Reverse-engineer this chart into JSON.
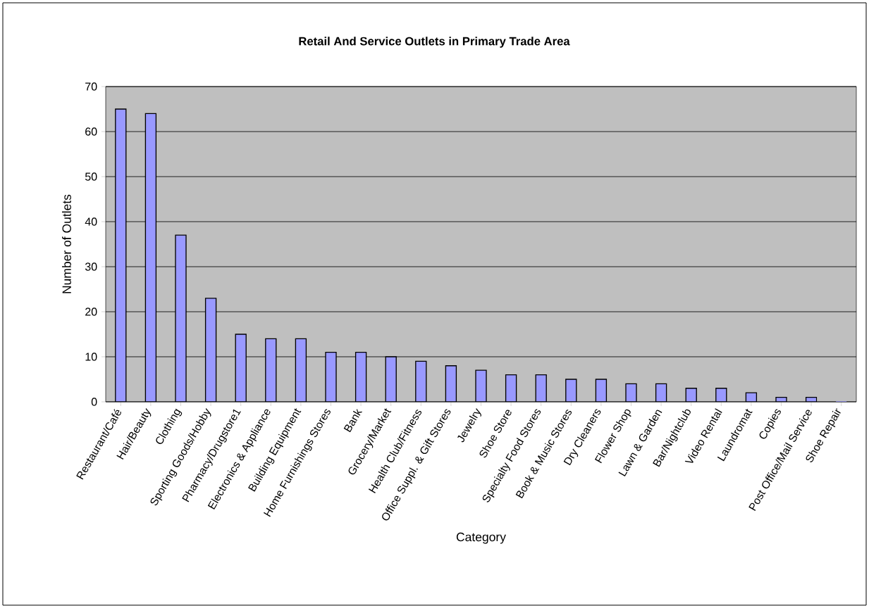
{
  "chart_data": {
    "type": "bar",
    "title": "Retail  And Service Outlets in Primary Trade Area",
    "xlabel": "Category",
    "ylabel": "Number of Outlets",
    "categories": [
      "Restaurant/Café",
      "Hair/Beauty",
      "Clothing",
      "Sporting Goods/Hobby",
      "Pharmacy/Drugstore1",
      "Electronics & Appliance",
      "Building Equipment",
      "Home Furnishings Stores",
      "Bank",
      "Grocery/Market",
      "Health Club/Fitness",
      "Office Suppl. & Gift Stores",
      "Jewelry",
      "Shoe Store",
      "Specialty Food Stores",
      "Book & Music Stores",
      "Dry Cleaners",
      "Flower Shop",
      "Lawn & Garden",
      "Bar/Nightclub",
      "Video Rental",
      "Laundromat",
      "Copies",
      "Post Office/Mail Service",
      "Shoe Repair"
    ],
    "values": [
      65,
      64,
      37,
      23,
      15,
      14,
      14,
      11,
      11,
      10,
      9,
      8,
      7,
      6,
      6,
      5,
      5,
      4,
      4,
      3,
      3,
      2,
      1,
      1,
      0
    ],
    "color": "#9999ff",
    "ylim": [
      0,
      70
    ],
    "yticks": [
      0,
      10,
      20,
      30,
      40,
      50,
      60,
      70
    ],
    "grid": "y"
  }
}
